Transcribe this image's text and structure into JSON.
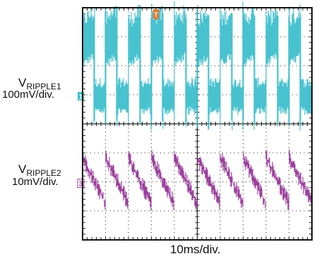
{
  "chart_data": {
    "type": "line",
    "title": "",
    "xlabel": "10ms/div",
    "grid": true,
    "divisions": {
      "x": 10,
      "y": 8
    },
    "x_range_ms": [
      0,
      100
    ],
    "time_per_div": "10ms/div",
    "trigger_marker": "T",
    "series": [
      {
        "channel": "1",
        "name": "V",
        "name_subscript": "RIPPLE1",
        "scale": "100mV/div",
        "color": "#3fbfcc",
        "offset_div": 4.95,
        "switching_period_ms": 10.0,
        "high_window_ms": [
          0,
          5.0
        ],
        "levels_mV": {
          "high_band": [
            150,
            270
          ],
          "low_band": [
            -30,
            20
          ],
          "edge_spike_max": 330,
          "edge_dip_min": -120
        },
        "noise_mV_pp": 120
      },
      {
        "channel": "3",
        "name": "V",
        "name_subscript": "RIPPLE2",
        "scale": "10mV/div",
        "color": "#9b3f9e",
        "offset_div": 1.95,
        "switching_period_ms": 10.0,
        "ripple_mV": {
          "peak": 9,
          "trough": -7
        },
        "noise_mV_pp": 5
      }
    ]
  },
  "labels": {
    "ch1_name": "V",
    "ch1_sub": "RIPPLE1",
    "ch1_scale": "100mV/div.",
    "ch2_name": "V",
    "ch2_sub": "RIPPLE2",
    "ch2_scale": "10mV/div.",
    "time_scale": "10ms/div.",
    "ch1_marker": "1",
    "ch2_marker": "3",
    "trigger": "T"
  },
  "colors": {
    "ch1": "#3fbfcc",
    "ch2": "#9b3f9e",
    "trigger": "#e8762d",
    "grid": "#222222",
    "frame": "#111111"
  }
}
